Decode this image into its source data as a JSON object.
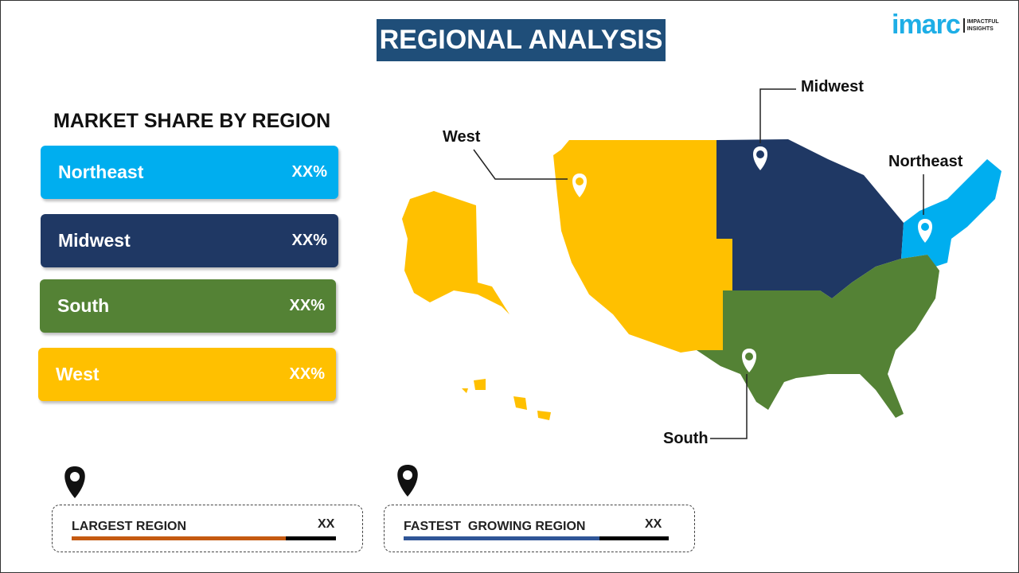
{
  "title": "REGIONAL ANALYSIS",
  "logo": {
    "word": "imarc",
    "tagline_1": "IMPACTFUL",
    "tagline_2": "INSIGHTS"
  },
  "market_share": {
    "title": "MARKET SHARE BY REGION",
    "regions": [
      {
        "name": "Northeast",
        "value": "XX%",
        "color": "#00aeef"
      },
      {
        "name": "Midwest",
        "value": "XX%",
        "color": "#1f3864"
      },
      {
        "name": "South",
        "value": "XX%",
        "color": "#548235"
      },
      {
        "name": "West",
        "value": "XX%",
        "color": "#ffc000"
      }
    ]
  },
  "map_labels": {
    "west": "West",
    "midwest": "Midwest",
    "northeast": "Northeast",
    "south": "South"
  },
  "largest_region": {
    "label": "LARGEST REGION",
    "value": "XX",
    "progress_percent": 81,
    "color": "#c55a11"
  },
  "fastest_growing_region": {
    "label": "FASTEST  GROWING REGION",
    "value": "XX",
    "progress_percent": 74,
    "color": "#2f5597"
  },
  "icons": [
    "map-pin-icon"
  ]
}
